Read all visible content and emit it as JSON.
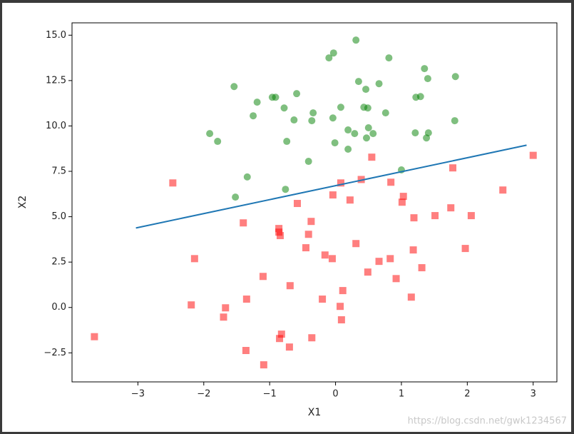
{
  "chart_data": {
    "type": "scatter",
    "xlabel": "X1",
    "ylabel": "X2",
    "xlim": [
      -4.0,
      3.36
    ],
    "ylim": [
      -4.1,
      15.68
    ],
    "xticks": [
      {
        "value": -3,
        "label": "−3"
      },
      {
        "value": -2,
        "label": "−2"
      },
      {
        "value": -1,
        "label": "−1"
      },
      0,
      1,
      2,
      3
    ],
    "yticks": [
      {
        "value": -2.5,
        "label": "−2.5"
      },
      {
        "value": 0,
        "label": "0.0"
      },
      2.5,
      {
        "value": 5,
        "label": "5.0"
      },
      7.5,
      {
        "value": 10,
        "label": "10.0"
      },
      12.5,
      {
        "value": 15,
        "label": "15.0"
      }
    ],
    "grid": false,
    "series": [
      {
        "style": "scatter",
        "marker": "square",
        "color": "#ff0000",
        "x": [
          -3.66,
          -2.47,
          -2.14,
          -2.19,
          -1.7,
          -1.67,
          -1.4,
          -1.35,
          -1.36,
          -1.1,
          -1.09,
          -0.86,
          -0.86,
          -0.84,
          -0.85,
          -0.82,
          -0.7,
          -0.69,
          -0.58,
          -0.45,
          -0.41,
          -0.37,
          -0.36,
          -0.16,
          -0.2,
          -0.05,
          -0.04,
          0.08,
          0.07,
          0.09,
          0.11,
          0.22,
          0.31,
          0.39,
          0.49,
          0.55,
          0.66,
          0.84,
          0.83,
          0.92,
          1.01,
          1.03,
          1.15,
          1.18,
          1.19,
          1.31,
          1.51,
          1.75,
          1.78,
          1.97,
          2.06,
          2.54,
          3.0
        ],
        "y": [
          -1.61,
          6.86,
          2.69,
          0.14,
          -0.53,
          -0.02,
          4.66,
          0.46,
          -2.37,
          1.71,
          -3.16,
          4.35,
          4.15,
          3.96,
          -1.71,
          -1.47,
          -2.18,
          1.2,
          5.73,
          3.29,
          4.03,
          4.74,
          -1.67,
          2.89,
          0.46,
          2.69,
          6.2,
          6.86,
          0.06,
          -0.68,
          0.93,
          5.92,
          3.52,
          7.05,
          1.95,
          8.28,
          2.54,
          6.9,
          2.69,
          1.59,
          5.8,
          6.12,
          0.57,
          3.17,
          4.94,
          2.19,
          5.06,
          5.49,
          7.69,
          3.25,
          5.06,
          6.47,
          8.38
        ]
      },
      {
        "style": "scatter",
        "marker": "circle",
        "color": "#008000",
        "x": [
          0.31,
          -0.03,
          -0.1,
          0.81,
          1.35,
          1.82,
          0.35,
          1.4,
          0.66,
          -1.54,
          0.46,
          -0.59,
          -0.96,
          -0.91,
          -1.19,
          0.08,
          0.43,
          0.49,
          -0.78,
          -1.25,
          -0.34,
          0.76,
          -0.04,
          -0.63,
          -0.36,
          1.22,
          1.29,
          1.81,
          0.19,
          0.5,
          -1.91,
          0.57,
          1.21,
          1.41,
          0.29,
          -1.79,
          1.38,
          0.47,
          -0.74,
          -0.01,
          0.19,
          -0.41,
          1.0,
          -1.34,
          -0.76,
          -1.52
        ],
        "y": [
          14.73,
          14.02,
          13.75,
          13.75,
          13.16,
          12.72,
          12.45,
          12.61,
          12.33,
          12.17,
          12.02,
          11.78,
          11.58,
          11.58,
          11.31,
          11.03,
          11.03,
          10.99,
          10.99,
          10.56,
          10.72,
          10.72,
          10.44,
          10.33,
          10.29,
          11.58,
          11.62,
          10.29,
          9.78,
          9.9,
          9.58,
          9.58,
          9.62,
          9.62,
          9.58,
          9.15,
          9.34,
          9.34,
          9.15,
          9.07,
          8.72,
          8.05,
          7.58,
          7.19,
          6.51,
          6.08
        ]
      },
      {
        "style": "line",
        "color": "#1f77b4",
        "x": [
          -3.03,
          2.9
        ],
        "y": [
          4.38,
          8.94
        ]
      }
    ],
    "watermark": "https://blog.csdn.net/gwk1234567"
  }
}
